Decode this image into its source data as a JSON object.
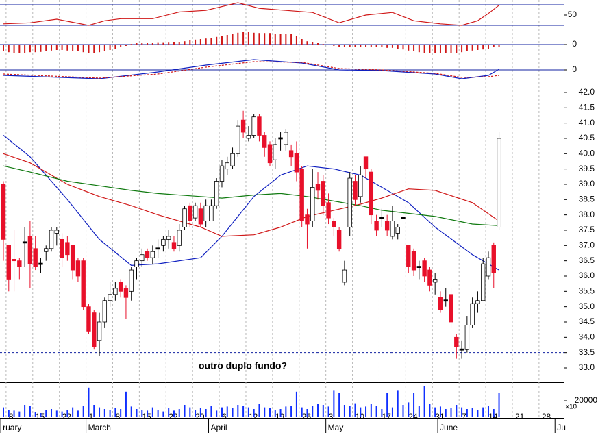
{
  "chart_data": [
    {
      "type": "candlestick",
      "categories": [
        null,
        "8",
        null,
        null,
        null,
        null,
        "15",
        null,
        null,
        null,
        null,
        "22",
        null,
        null,
        null,
        null,
        "1",
        null,
        null,
        null,
        null,
        "8",
        null,
        null,
        null,
        null,
        "15",
        null,
        null,
        null,
        null,
        "22",
        null,
        null,
        null,
        null,
        "29",
        null,
        null,
        null,
        null,
        "6",
        null,
        null,
        null,
        null,
        "12",
        null,
        null,
        null,
        null,
        "19",
        null,
        null,
        null,
        null,
        "26",
        null,
        null,
        null,
        null,
        "3",
        null,
        null,
        null,
        null,
        "10",
        null,
        null,
        null,
        null,
        "17",
        null,
        null,
        null,
        null,
        "24",
        null,
        null,
        null,
        null,
        "31",
        null,
        null,
        null,
        null,
        "7",
        null,
        null,
        null,
        null,
        "14",
        null,
        null,
        null,
        null,
        "21",
        null,
        null,
        null,
        null,
        "28",
        null,
        null,
        null
      ],
      "open": [
        39.0,
        37.0,
        36.55,
        36.5,
        37.1,
        37.3,
        36.9,
        36.4,
        36.8,
        36.9,
        37.4,
        37.2,
        37.1,
        37.0,
        36.5,
        36.5,
        35.0,
        34.8,
        33.9,
        34.5,
        35.2,
        35.4,
        35.8,
        35.6,
        35.5,
        36.3,
        36.5,
        36.8,
        36.6,
        36.9,
        37.0,
        37.2,
        37.1,
        37.0,
        37.6,
        38.3,
        37.9,
        38.2,
        37.8,
        37.8,
        38.3,
        39.1,
        39.5,
        39.6,
        40.0,
        41.1,
        40.5,
        40.6,
        41.2,
        40.6,
        40.3,
        39.8,
        40.5,
        40.3,
        40.1,
        40.0,
        39.5,
        38.0,
        37.8,
        39.0,
        39.1,
        38.4,
        37.8,
        37.5,
        35.8,
        37.6,
        39.1,
        38.6,
        39.9,
        39.4,
        37.8,
        37.9,
        37.8,
        37.3,
        37.4,
        37.9,
        37.0,
        36.8,
        36.3,
        36.5,
        36.2,
        35.8,
        35.3,
        35.2,
        35.4,
        34.0,
        33.6,
        33.6,
        34.4,
        35.1,
        35.2,
        36.0,
        37.0,
        37.6,
        null,
        null,
        null,
        null,
        null,
        null,
        null,
        null,
        null,
        null,
        null
      ],
      "high": [
        39.1,
        37.0,
        37.5,
        36.6,
        37.6,
        37.8,
        37.3,
        36.6,
        37.0,
        37.6,
        37.6,
        37.4,
        37.3,
        37.0,
        36.6,
        36.6,
        35.1,
        34.9,
        34.8,
        35.3,
        35.8,
        35.8,
        35.9,
        35.7,
        36.3,
        36.6,
        36.9,
        36.9,
        37.0,
        37.2,
        37.3,
        37.5,
        37.3,
        37.7,
        38.3,
        38.4,
        38.4,
        38.4,
        38.5,
        38.5,
        39.2,
        39.8,
        39.9,
        40.2,
        41.1,
        41.4,
        40.9,
        41.3,
        41.3,
        40.7,
        40.4,
        40.5,
        40.7,
        40.8,
        40.3,
        40.4,
        39.6,
        38.2,
        39.5,
        39.4,
        39.3,
        38.7,
        37.9,
        37.6,
        36.5,
        39.4,
        39.3,
        39.6,
        39.9,
        39.5,
        38.0,
        38.2,
        38.0,
        38.3,
        37.7,
        38.2,
        37.0,
        36.9,
        36.5,
        36.6,
        36.3,
        36.1,
        35.5,
        35.6,
        35.6,
        34.1,
        33.9,
        34.7,
        35.3,
        35.5,
        36.6,
        36.8,
        37.1,
        40.7,
        null,
        null,
        null,
        null,
        null,
        null,
        null,
        null,
        null,
        null,
        null
      ],
      "low": [
        36.5,
        35.5,
        35.5,
        35.9,
        36.3,
        35.6,
        36.2,
        36.1,
        36.5,
        36.8,
        37.0,
        36.3,
        36.5,
        35.9,
        35.8,
        34.9,
        34.1,
        33.6,
        33.4,
        34.3,
        35.0,
        35.2,
        35.3,
        34.6,
        35.2,
        35.9,
        36.3,
        36.5,
        36.4,
        36.6,
        36.8,
        36.9,
        36.8,
        36.8,
        37.5,
        37.6,
        37.8,
        37.6,
        37.6,
        37.8,
        38.2,
        38.9,
        39.3,
        39.5,
        39.9,
        40.5,
        40.4,
        40.5,
        40.4,
        39.9,
        39.6,
        39.5,
        40.1,
        40.1,
        39.6,
        39.1,
        37.6,
        36.9,
        37.6,
        38.5,
        38.0,
        37.7,
        37.3,
        36.8,
        35.7,
        37.3,
        38.3,
        38.4,
        39.2,
        37.7,
        37.3,
        37.6,
        37.3,
        37.2,
        37.2,
        37.3,
        36.1,
        36.0,
        35.9,
        35.8,
        35.5,
        35.4,
        34.8,
        35.0,
        34.3,
        33.3,
        33.3,
        33.5,
        34.3,
        34.8,
        35.2,
        35.9,
        35.6,
        37.5,
        null,
        null,
        null,
        null,
        null,
        null,
        null,
        null,
        null,
        null,
        null
      ],
      "close": [
        37.2,
        35.9,
        36.5,
        36.3,
        37.1,
        36.4,
        36.3,
        36.4,
        36.9,
        37.5,
        37.5,
        36.6,
        36.7,
        36.2,
        36.0,
        35.0,
        34.2,
        33.7,
        34.5,
        35.2,
        35.4,
        35.6,
        35.5,
        35.3,
        36.2,
        36.5,
        36.7,
        36.6,
        36.8,
        36.9,
        37.2,
        37.3,
        36.9,
        37.5,
        38.2,
        37.8,
        38.3,
        37.7,
        38.3,
        38.3,
        39.1,
        39.6,
        39.7,
        40.0,
        40.9,
        40.7,
        40.6,
        41.2,
        40.6,
        40.2,
        39.7,
        40.3,
        40.5,
        40.7,
        39.9,
        39.4,
        37.8,
        37.7,
        38.9,
        38.8,
        38.3,
        37.9,
        37.6,
        36.9,
        36.2,
        39.2,
        38.5,
        39.3,
        39.5,
        38.0,
        37.5,
        37.9,
        37.5,
        37.8,
        37.6,
        37.9,
        36.3,
        36.2,
        36.3,
        36.0,
        35.7,
        35.9,
        34.9,
        35.2,
        34.5,
        33.7,
        33.6,
        34.4,
        35.1,
        35.2,
        36.4,
        36.6,
        36.1,
        40.5,
        null,
        null,
        null,
        null,
        null,
        null,
        null,
        null,
        null,
        null,
        null
      ],
      "up_color": "#ffffff",
      "down_color": "#e8102a",
      "ylim": [
        32.53,
        42.29
      ],
      "yticks": [
        {
          "value": 33,
          "label": "33.0"
        },
        {
          "value": 33.5,
          "label": "33.5"
        },
        {
          "value": 34,
          "label": "34.0"
        },
        {
          "value": 34.5,
          "label": "34.5"
        },
        {
          "value": 35,
          "label": "35.0"
        },
        {
          "value": 35.5,
          "label": "35.5"
        },
        {
          "value": 36,
          "label": "36.0"
        },
        {
          "value": 36.5,
          "label": "36.5"
        },
        {
          "value": 37,
          "label": "37.0"
        },
        {
          "value": 37.5,
          "label": "37.5"
        },
        {
          "value": 38,
          "label": "38.0"
        },
        {
          "value": 38.5,
          "label": "38.5"
        },
        {
          "value": 39,
          "label": "39.0"
        },
        {
          "value": 39.5,
          "label": "39.5"
        },
        {
          "value": 40,
          "label": "40.0"
        },
        {
          "value": 40.5,
          "label": "40.5"
        },
        {
          "value": 41,
          "label": "41.0"
        },
        {
          "value": 41.5,
          "label": "41.5"
        },
        {
          "value": 42,
          "label": "42.0"
        }
      ],
      "grid": true,
      "support": 33.5,
      "annotation": "outro duplo fundo?",
      "months": [
        {
          "label": "ruary",
          "start": 0
        },
        {
          "label": "March",
          "start": 16
        },
        {
          "label": "April",
          "start": 39
        },
        {
          "label": "May",
          "start": 61
        },
        {
          "label": "June",
          "start": 82
        },
        {
          "label": "Ju",
          "start": 104
        }
      ],
      "series": [
        {
          "color": "#1020c0",
          "x": [
            0,
            5,
            12,
            18,
            24,
            29,
            37,
            41,
            47,
            52,
            57,
            62,
            67,
            71,
            76,
            81,
            88,
            93
          ],
          "values": [
            40.6,
            39.9,
            38.5,
            37.2,
            36.35,
            36.4,
            36.6,
            37.3,
            38.6,
            39.3,
            39.6,
            39.5,
            39.3,
            38.9,
            38.4,
            37.6,
            36.7,
            36.2
          ]
        },
        {
          "color": "#d01818",
          "x": [
            0,
            5,
            12,
            18,
            24,
            29,
            37,
            41,
            47,
            52,
            57,
            62,
            67,
            71,
            76,
            81,
            88,
            93
          ],
          "values": [
            40.0,
            39.7,
            39.0,
            38.6,
            38.3,
            38.0,
            37.6,
            37.3,
            37.35,
            37.6,
            37.95,
            38.15,
            38.35,
            38.55,
            38.85,
            38.8,
            38.4,
            37.8
          ]
        },
        {
          "color": "#107a10",
          "x": [
            0,
            5,
            12,
            18,
            24,
            29,
            37,
            41,
            47,
            52,
            57,
            62,
            67,
            71,
            76,
            81,
            88,
            93
          ],
          "values": [
            39.6,
            39.4,
            39.1,
            38.95,
            38.8,
            38.7,
            38.6,
            38.55,
            38.65,
            38.7,
            38.6,
            38.45,
            38.3,
            38.15,
            38.05,
            37.95,
            37.7,
            37.65
          ]
        }
      ]
    },
    {
      "type": "line",
      "color": "#d01818",
      "x": [
        0,
        5,
        10,
        16,
        19,
        22,
        28,
        33,
        38,
        44,
        48,
        53,
        58,
        63,
        68,
        73,
        77,
        82,
        86,
        89,
        91,
        93
      ],
      "values": [
        33,
        35,
        42,
        30,
        39,
        43,
        43,
        56,
        59,
        74,
        63,
        59,
        55,
        35,
        50,
        55,
        39,
        33,
        30,
        39,
        53,
        69
      ],
      "ylim": [
        12.7,
        79.3
      ],
      "yticks": [
        50
      ],
      "levels": [
        30,
        70
      ],
      "level_color": "#1020a0"
    },
    {
      "type": "bar",
      "color": "#d01818",
      "values": [
        -0.25,
        -0.28,
        -0.3,
        -0.3,
        -0.3,
        -0.28,
        -0.28,
        -0.27,
        -0.25,
        -0.22,
        -0.2,
        -0.2,
        -0.22,
        -0.25,
        -0.25,
        -0.28,
        -0.3,
        -0.3,
        -0.28,
        -0.25,
        -0.2,
        -0.15,
        -0.1,
        -0.05,
        0.02,
        0.05,
        0.05,
        0.05,
        0.05,
        0.06,
        0.06,
        0.07,
        0.08,
        0.1,
        0.12,
        0.15,
        0.18,
        0.2,
        0.22,
        0.25,
        0.28,
        0.3,
        0.35,
        0.4,
        0.43,
        0.45,
        0.45,
        0.43,
        0.42,
        0.42,
        0.42,
        0.4,
        0.4,
        0.4,
        0.38,
        0.3,
        0.2,
        0.12,
        0.08,
        0.05,
        0.02,
        -0.02,
        -0.05,
        -0.08,
        -0.1,
        -0.1,
        -0.08,
        -0.08,
        -0.08,
        -0.1,
        -0.1,
        -0.1,
        -0.12,
        -0.12,
        -0.15,
        -0.18,
        -0.22,
        -0.25,
        -0.28,
        -0.3,
        -0.3,
        -0.3,
        -0.32,
        -0.32,
        -0.3,
        -0.3,
        -0.28,
        -0.25,
        -0.22,
        -0.2,
        -0.18,
        -0.15,
        -0.1,
        -0.08
      ],
      "ylim": [
        -0.5,
        0.5
      ],
      "yticks": [
        0
      ],
      "grid": true,
      "grid_color": "#1020a0"
    },
    {
      "type": "line",
      "series": [
        {
          "color": "#1020c0",
          "x": [
            0,
            18,
            29,
            38,
            47,
            56,
            63,
            71,
            81,
            86,
            91,
            93
          ],
          "values": [
            -0.4,
            -0.65,
            -0.15,
            0.35,
            0.75,
            0.5,
            0,
            -0.05,
            -0.3,
            -0.65,
            -0.4,
            0.05
          ]
        },
        {
          "color": "#d01818",
          "dashed": true,
          "x": [
            0,
            18,
            29,
            38,
            47,
            56,
            63,
            71,
            81,
            86,
            91,
            93
          ],
          "values": [
            -0.3,
            -0.6,
            -0.3,
            0.2,
            0.6,
            0.55,
            0.1,
            0,
            -0.25,
            -0.55,
            -0.5,
            -0.4
          ]
        }
      ],
      "ylim": [
        -0.9,
        0.9
      ],
      "yticks": [
        0
      ],
      "grid": true,
      "grid_color": "#1020a0"
    },
    {
      "type": "bar",
      "color": "#1030ff",
      "values": [
        12000,
        9000,
        8000,
        7000,
        15000,
        14000,
        6000,
        5000,
        9000,
        10000,
        8000,
        7000,
        9000,
        12000,
        8000,
        14000,
        36000,
        15000,
        12000,
        10000,
        9000,
        11000,
        10000,
        31000,
        13000,
        10000,
        9000,
        8000,
        12000,
        9000,
        7000,
        11000,
        8000,
        10000,
        15000,
        12000,
        9000,
        11000,
        10000,
        14000,
        8000,
        12000,
        13000,
        11000,
        15000,
        14000,
        12000,
        10000,
        16000,
        12000,
        11000,
        9000,
        10000,
        13000,
        14000,
        31000,
        12000,
        10000,
        14000,
        16000,
        15000,
        13000,
        33000,
        30000,
        15000,
        14000,
        17000,
        12000,
        13000,
        16000,
        14000,
        10000,
        30000,
        12000,
        33000,
        15000,
        18000,
        30000,
        14000,
        38000,
        16000,
        12000,
        13000,
        10000,
        11000,
        15000,
        12000,
        10000,
        11000,
        9000,
        12000,
        14000,
        10000,
        30000
      ],
      "ylim": [
        0,
        40000
      ],
      "yticks": [
        20000
      ],
      "y_label": "x10"
    }
  ]
}
